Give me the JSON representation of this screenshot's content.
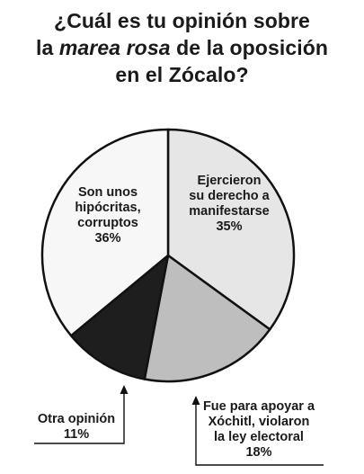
{
  "title": {
    "line1": "¿Cuál es tu opinión sobre",
    "line2_prefix": "la ",
    "line2_italic": "marea rosa",
    "line2_suffix": " de la oposición",
    "line3": "en el Zócalo?"
  },
  "chart_data": {
    "type": "pie",
    "title": "¿Cuál es tu opinión sobre la marea rosa de la oposición en el Zócalo?",
    "slices": [
      {
        "label": "Ejercieron su derecho a manifestarse",
        "label_lines": [
          "Ejercieron",
          "su derecho a",
          "manifestarse",
          "35%"
        ],
        "value": 35,
        "color": "#e6e6e6"
      },
      {
        "label": "Fue para apoyar a Xóchitl, violaron la ley electoral",
        "label_lines": [
          "Fue para apoyar a",
          "Xóchitl, violaron",
          "la ley electoral",
          "18%"
        ],
        "value": 18,
        "color": "#bebebe"
      },
      {
        "label": "Otra opinión",
        "label_lines": [
          "Otra opinión",
          "11%"
        ],
        "value": 11,
        "color": "#1e1e1e"
      },
      {
        "label": "Son unos hipócritas, corruptos",
        "label_lines": [
          "Son unos",
          "hipócritas,",
          "corruptos",
          "36%"
        ],
        "value": 36,
        "color": "#f7f7f7"
      }
    ]
  }
}
